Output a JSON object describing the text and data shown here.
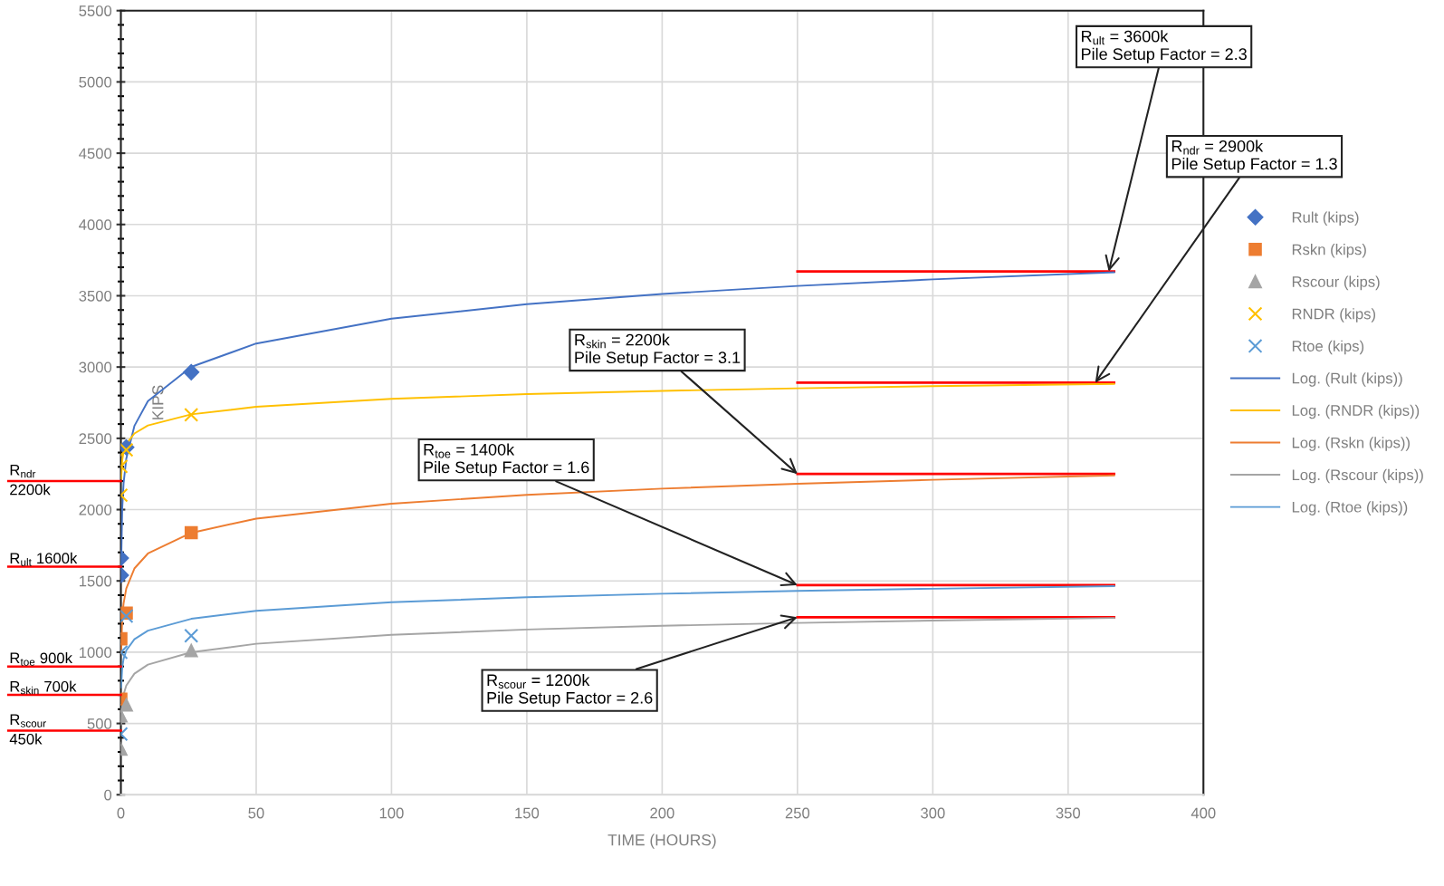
{
  "chart_data": {
    "type": "scatter",
    "xlabel": "TIME (HOURS)",
    "ylabel": "KIPS",
    "xlim": [
      0,
      400
    ],
    "xticks": [
      0,
      50,
      100,
      150,
      200,
      250,
      300,
      350,
      400
    ],
    "ylim": [
      0,
      5500
    ],
    "yticks": [
      0,
      500,
      1000,
      1500,
      2000,
      2500,
      3000,
      3500,
      4000,
      4500,
      5000,
      5500
    ],
    "grid": true,
    "legend": "right",
    "series": [
      {
        "name": "Rult (kips)",
        "marker": "diamond",
        "color": "#4472c4",
        "x": [
          0,
          0,
          2,
          26
        ],
        "values": [
          1660,
          1540,
          2437,
          2964
        ]
      },
      {
        "name": "Rskn (kips)",
        "marker": "square",
        "color": "#ed7d31",
        "x": [
          0,
          0,
          2,
          26
        ],
        "values": [
          1094,
          670,
          1274,
          1838
        ]
      },
      {
        "name": "Rscour (kips)",
        "marker": "triangle",
        "color": "#a5a5a5",
        "x": [
          0,
          0,
          2,
          26
        ],
        "values": [
          320,
          553,
          630,
          1011
        ]
      },
      {
        "name": "RNDR (kips)",
        "marker": "cross",
        "color": "#ffc000",
        "x": [
          0,
          0,
          2,
          26
        ],
        "values": [
          2303,
          2101,
          2419,
          2665
        ]
      },
      {
        "name": "Rtoe (kips)",
        "marker": "cross",
        "color": "#5b9bd5",
        "x": [
          0,
          0,
          2,
          26
        ],
        "values": [
          999,
          426,
          1253,
          1115
        ]
      },
      {
        "name": "Log. (Rult (kips))",
        "type": "line",
        "color": "#4472c4",
        "x": [
          0.1,
          0.5,
          1,
          2,
          5,
          10,
          26,
          50,
          100,
          150,
          200,
          250,
          300,
          367
        ],
        "values": [
          1605,
          2009,
          2183,
          2357,
          2587,
          2761,
          3001,
          3165,
          3339,
          3441,
          3513,
          3569,
          3615,
          3665
        ]
      },
      {
        "name": "Log. (RNDR (kips))",
        "type": "line",
        "color": "#ffc000",
        "x": [
          0.1,
          0.5,
          1,
          2,
          5,
          10,
          26,
          50,
          100,
          150,
          200,
          250,
          300,
          367
        ],
        "values": [
          2217,
          2348,
          2404,
          2460,
          2534,
          2590,
          2668,
          2721,
          2777,
          2810,
          2833,
          2851,
          2866,
          2882
        ]
      },
      {
        "name": "Log. (Rskn (kips))",
        "type": "line",
        "color": "#ed7d31",
        "x": [
          0.1,
          0.5,
          1,
          2,
          5,
          10,
          26,
          50,
          100,
          150,
          200,
          250,
          300,
          367
        ],
        "values": [
          992,
          1237,
          1342,
          1447,
          1587,
          1692,
          1837,
          1937,
          2042,
          2104,
          2147,
          2181,
          2209,
          2240
        ]
      },
      {
        "name": "Log. (Rscour (kips))",
        "type": "line",
        "color": "#a5a5a5",
        "x": [
          0.1,
          0.5,
          1,
          2,
          5,
          10,
          26,
          50,
          100,
          150,
          200,
          250,
          300,
          367
        ],
        "values": [
          493,
          640,
          703,
          766,
          849,
          913,
          999,
          1059,
          1122,
          1159,
          1185,
          1205,
          1222,
          1240
        ]
      },
      {
        "name": "Log. (Rtoe (kips))",
        "type": "line",
        "color": "#5b9bd5",
        "x": [
          0.1,
          0.5,
          1,
          2,
          5,
          10,
          26,
          50,
          100,
          150,
          200,
          250,
          300,
          367
        ],
        "values": [
          753,
          892,
          952,
          1012,
          1091,
          1151,
          1234,
          1290,
          1350,
          1385,
          1410,
          1430,
          1445,
          1463
        ]
      },
      {
        "type": "line",
        "color": "#ff0000",
        "x": [
          250,
          367
        ],
        "values": [
          3670,
          3670
        ]
      },
      {
        "type": "line",
        "color": "#ff0000",
        "x": [
          250,
          367
        ],
        "values": [
          2890,
          2890
        ]
      },
      {
        "type": "line",
        "color": "#ff0000",
        "x": [
          250,
          367
        ],
        "values": [
          2250,
          2250
        ]
      },
      {
        "type": "line",
        "color": "#ff0000",
        "x": [
          250,
          367
        ],
        "values": [
          1470,
          1470
        ]
      },
      {
        "type": "line",
        "color": "#ff0000",
        "x": [
          250,
          367
        ],
        "values": [
          1245,
          1245
        ]
      }
    ],
    "ref_lines": [
      {
        "axis": "y",
        "value": 2200,
        "label": "R$_{ndr}$\n2200k",
        "color": "#ff0000"
      },
      {
        "axis": "y",
        "value": 1600,
        "label": "R$_{ult}$ 1600k",
        "color": "#ff0000"
      },
      {
        "axis": "y",
        "value": 900,
        "label": "R$_{toe}$ 900k",
        "color": "#ff0000"
      },
      {
        "axis": "y",
        "value": 700,
        "label": "R$_{skin}$ 700k",
        "color": "#ff0000"
      },
      {
        "axis": "y",
        "value": 450,
        "label": "R$_{scour}$\n450k",
        "color": "#ff0000"
      }
    ],
    "annotations": [
      {
        "text": "R$_{ult}$ = 3600k\nPile Setup Factor = 2.3",
        "x": 365,
        "y": 3670
      },
      {
        "text": "R$_{ndr}$ = 2900k\nPile Setup Factor = 1.3",
        "x": 360,
        "y": 2890
      },
      {
        "text": "R$_{skin}$ = 2200k\nPile Setup Factor = 3.1",
        "x": 250,
        "y": 2250
      },
      {
        "text": "R$_{toe}$ = 1400k\nPile Setup Factor = 1.6",
        "x": 250,
        "y": 1470
      },
      {
        "text": "R$_{scour}$ = 1200k\nPile Setup Factor = 2.6",
        "x": 250,
        "y": 1245
      }
    ]
  }
}
